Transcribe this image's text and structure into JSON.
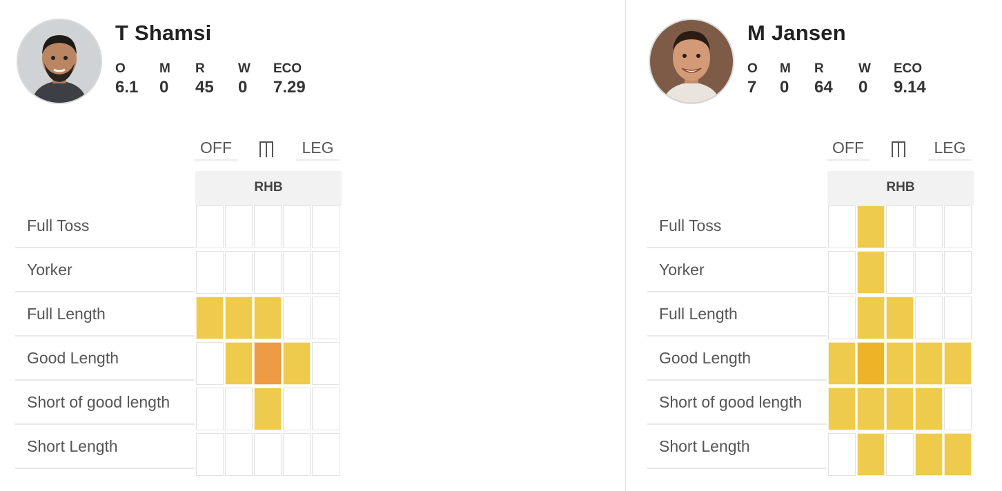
{
  "stat_labels": {
    "overs": "O",
    "maidens": "M",
    "runs": "R",
    "wickets": "W",
    "economy": "ECO"
  },
  "pitch_labels": {
    "off": "OFF",
    "leg": "LEG",
    "batter": "RHB"
  },
  "lengths": [
    "Full Toss",
    "Yorker",
    "Full Length",
    "Good Length",
    "Short of good length",
    "Short Length"
  ],
  "colors": {
    "none": "#ffffff",
    "low": "#eecb4c",
    "mid": "#ecb426",
    "high": "#ee9b45"
  },
  "players": [
    {
      "name": "T Shamsi",
      "avatar_icon": "player-photo",
      "stats": {
        "overs": "6.1",
        "maidens": "0",
        "runs": "45",
        "wickets": "0",
        "economy": "7.29"
      },
      "heatmap": [
        [
          "none",
          "none",
          "none",
          "none",
          "none"
        ],
        [
          "none",
          "none",
          "none",
          "none",
          "none"
        ],
        [
          "low",
          "low",
          "low",
          "none",
          "none"
        ],
        [
          "none",
          "low",
          "high",
          "low",
          "none"
        ],
        [
          "none",
          "none",
          "low",
          "none",
          "none"
        ],
        [
          "none",
          "none",
          "none",
          "none",
          "none"
        ]
      ]
    },
    {
      "name": "M Jansen",
      "avatar_icon": "player-photo",
      "stats": {
        "overs": "7",
        "maidens": "0",
        "runs": "64",
        "wickets": "0",
        "economy": "9.14"
      },
      "heatmap": [
        [
          "none",
          "low",
          "none",
          "none",
          "none"
        ],
        [
          "none",
          "low",
          "none",
          "none",
          "none"
        ],
        [
          "none",
          "low",
          "low",
          "none",
          "none"
        ],
        [
          "low",
          "mid",
          "low",
          "low",
          "low"
        ],
        [
          "low",
          "low",
          "low",
          "low",
          "none"
        ],
        [
          "none",
          "low",
          "none",
          "low",
          "low"
        ]
      ]
    }
  ]
}
